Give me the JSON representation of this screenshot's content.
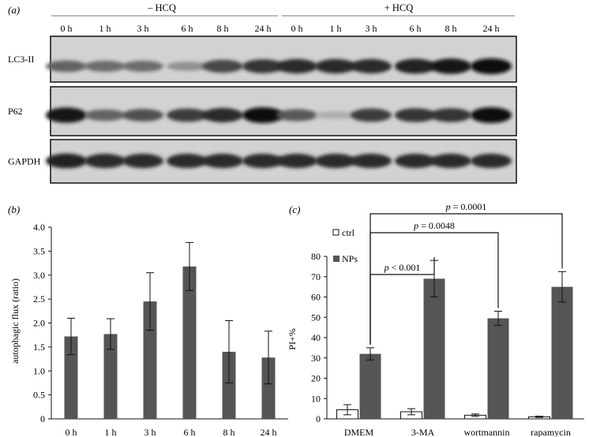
{
  "panel_a": {
    "label": "(a)",
    "groups": [
      {
        "label": "– HCQ",
        "lanes": [
          "0 h",
          "1 h",
          "3 h",
          "6 h",
          "8 h",
          "24 h"
        ]
      },
      {
        "label": "+ HCQ",
        "lanes": [
          "0 h",
          "1 h",
          "3 h",
          "6 h",
          "8 h",
          "24 h"
        ]
      }
    ],
    "blots": [
      {
        "label": "LC3-II",
        "intensity": [
          0.55,
          0.5,
          0.5,
          0.3,
          0.7,
          0.8,
          0.85,
          0.85,
          0.85,
          0.9,
          0.95,
          1.0
        ]
      },
      {
        "label": "P62",
        "intensity": [
          0.95,
          0.55,
          0.65,
          0.75,
          0.85,
          1.0,
          0.6,
          0.15,
          0.75,
          0.8,
          0.8,
          1.0
        ]
      },
      {
        "label": "GAPDH",
        "intensity": [
          0.9,
          0.85,
          0.85,
          0.85,
          0.85,
          0.85,
          0.85,
          0.85,
          0.85,
          0.85,
          0.85,
          0.85
        ]
      }
    ]
  },
  "panel_b": {
    "label": "(b)"
  },
  "panel_c": {
    "label": "(c)"
  },
  "chart_data": [
    {
      "type": "bar",
      "categories": [
        "0 h",
        "1 h",
        "3 h",
        "6 h",
        "8 h",
        "24 h"
      ],
      "values": [
        1.72,
        1.77,
        2.45,
        3.18,
        1.4,
        1.28
      ],
      "errors": [
        0.38,
        0.32,
        0.6,
        0.5,
        0.65,
        0.55
      ],
      "ylabel": "autophagic flux (ratio)",
      "xlabel": "",
      "ylim": [
        0,
        4.0
      ],
      "yticks": [
        "0",
        "0.5",
        "1.0",
        "1.5",
        "2.0",
        "2.5",
        "3.0",
        "3.5",
        "4.0"
      ],
      "colors": {
        "bar": "#555555"
      }
    },
    {
      "type": "bar",
      "categories": [
        "DMEM",
        "3-MA",
        "wortmannin",
        "rapamycin"
      ],
      "series": [
        {
          "name": "ctrl",
          "values": [
            4.5,
            3.5,
            1.8,
            1.0
          ],
          "errors": [
            2.5,
            1.5,
            0.6,
            0.3
          ],
          "color": "#ffffff"
        },
        {
          "name": "NPs",
          "values": [
            32,
            69,
            49.5,
            65
          ],
          "errors": [
            3,
            9,
            3.5,
            7.5
          ],
          "color": "#555555"
        }
      ],
      "ylabel": "PI+%",
      "xlabel": "",
      "ylim": [
        0,
        80
      ],
      "yticks": [
        "0",
        "10",
        "20",
        "30",
        "40",
        "50",
        "60",
        "70",
        "80"
      ],
      "legend_position": "top-left",
      "annotations": [
        {
          "p": "p",
          "rest": " < 0.001",
          "from": 0,
          "to": 1
        },
        {
          "p": "p",
          "rest": " = 0.0048",
          "from": 0,
          "to": 2
        },
        {
          "p": "p",
          "rest": " = 0.0001",
          "from": 0,
          "to": 3
        }
      ]
    }
  ]
}
